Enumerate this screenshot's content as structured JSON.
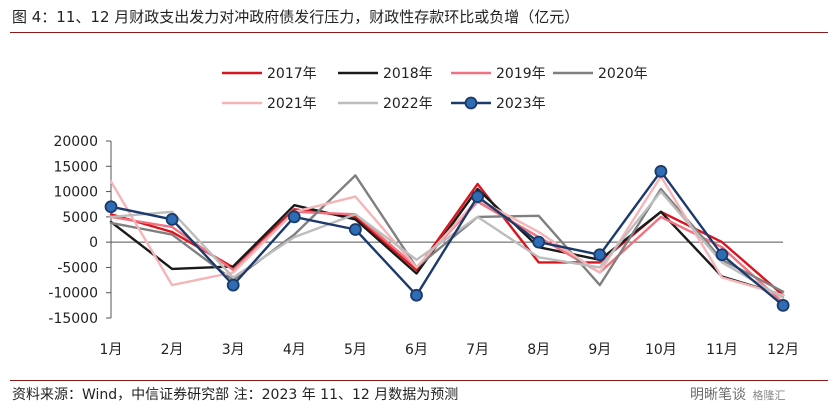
{
  "header": {
    "title": "图 4：11、12 月财政支出发力对冲政府债发行压力，财政性存款环比或负增（亿元）"
  },
  "footer": {
    "source": "资料来源：Wind，中信证券研究部  注：2023 年 11、12 月数据为预测"
  },
  "watermark": {
    "main": "明晰笔谈",
    "sub": "格隆汇"
  },
  "chart_data": {
    "type": "line",
    "title": "",
    "xlabel": "",
    "ylabel": "",
    "categories": [
      "1月",
      "2月",
      "3月",
      "4月",
      "5月",
      "6月",
      "7月",
      "8月",
      "9月",
      "10月",
      "11月",
      "12月"
    ],
    "ylim": [
      -15000,
      20000
    ],
    "yticks": [
      20000,
      15000,
      10000,
      5000,
      0,
      -5000,
      -10000,
      -15000
    ],
    "grid": false,
    "legend_position": "top",
    "series": [
      {
        "name": "2017年",
        "color": "#d7161f",
        "markers": false,
        "values": [
          5500,
          2000,
          -5000,
          6500,
          5000,
          -5500,
          11500,
          -4000,
          -4000,
          6000,
          0,
          -10500
        ]
      },
      {
        "name": "2018年",
        "color": "#1a1a1a",
        "markers": false,
        "values": [
          4000,
          -5300,
          -4800,
          7300,
          4500,
          -6200,
          10500,
          -1000,
          -3500,
          6000,
          -6800,
          -10500
        ]
      },
      {
        "name": "2019年",
        "color": "#f2727f",
        "markers": false,
        "values": [
          5000,
          3000,
          -5500,
          6000,
          5500,
          -5000,
          8000,
          1000,
          -6000,
          5000,
          -1000,
          -12000
        ]
      },
      {
        "name": "2020年",
        "color": "#808080",
        "markers": false,
        "values": [
          3800,
          1500,
          -7500,
          1500,
          13200,
          -5000,
          5000,
          5200,
          -8500,
          10500,
          -3500,
          -9800
        ]
      },
      {
        "name": "2021年",
        "color": "#f5b5b8",
        "markers": false,
        "values": [
          12000,
          -8500,
          -6000,
          6000,
          9000,
          -5000,
          8500,
          2000,
          -6000,
          13000,
          -7000,
          -10500
        ]
      },
      {
        "name": "2022年",
        "color": "#bdbdbd",
        "markers": false,
        "values": [
          5000,
          6000,
          -7000,
          1000,
          5500,
          -3500,
          5000,
          -3000,
          -5000,
          10000,
          -4000,
          -11000
        ]
      },
      {
        "name": "2023年",
        "color": "#1b3a6b",
        "markers": true,
        "values": [
          7000,
          4500,
          -8500,
          5000,
          2500,
          -10500,
          9000,
          0,
          -2500,
          14000,
          -2500,
          -12500
        ]
      }
    ]
  }
}
